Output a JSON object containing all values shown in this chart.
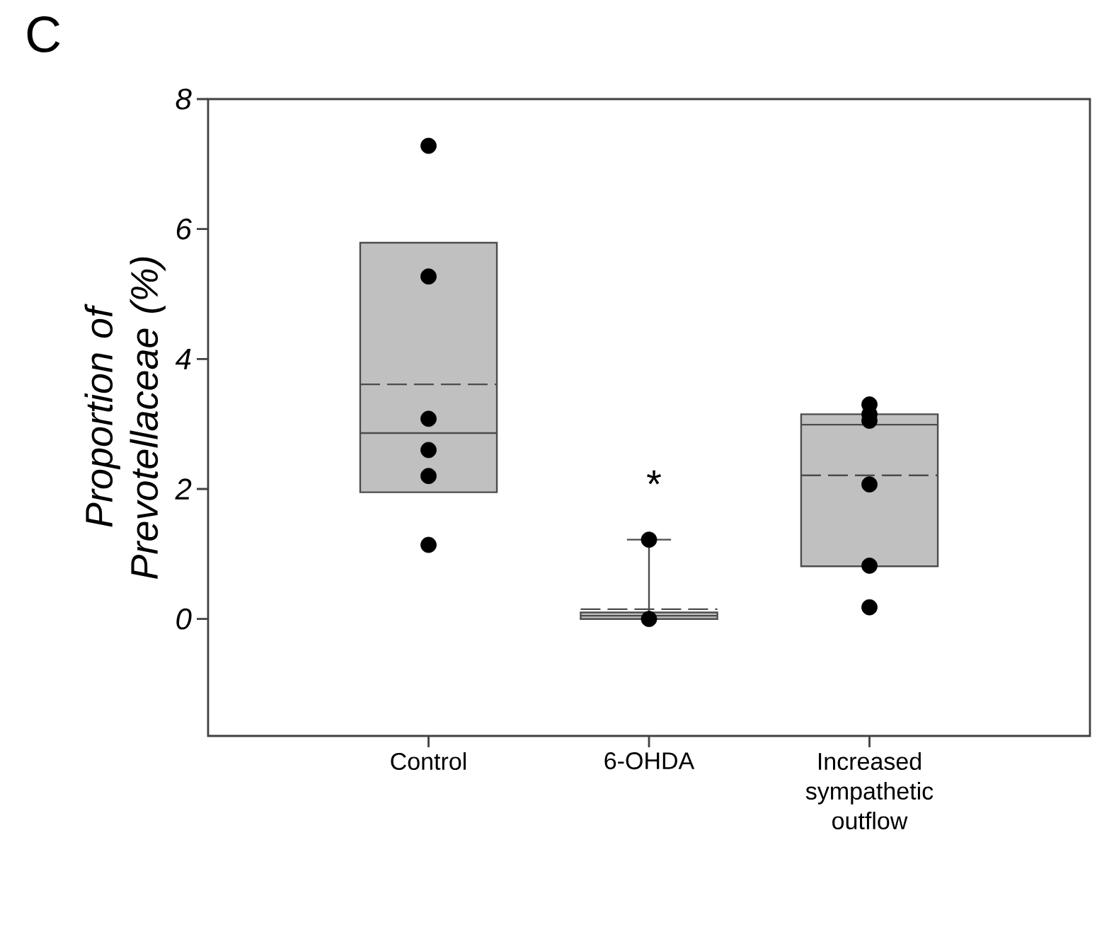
{
  "chart_data": {
    "type": "box",
    "ylabel": "Proportion of Prevotellaceae (%)",
    "categories": [
      "Control",
      "6-OHDA",
      "Increased sympathetic outflow"
    ],
    "series": [
      {
        "type": "box",
        "color": "#c0c0c0",
        "boxes": [
          {
            "low": 1.95,
            "q1": 1.95,
            "median": 2.86,
            "q3": 5.79,
            "high": 5.79,
            "mean": 3.61
          },
          {
            "low": 0,
            "q1": 0,
            "median": 0.05,
            "q3": 0.1,
            "high": 1.22,
            "mean": 0.15
          },
          {
            "low": 0.81,
            "q1": 0.81,
            "median": 2.99,
            "q3": 3.15,
            "high": 3.15,
            "mean": 2.21
          }
        ]
      },
      {
        "type": "scatter",
        "color": "#000000",
        "x": [
          "Control",
          "Control",
          "Control",
          "Control",
          "Control",
          "Control",
          "6-OHDA",
          "6-OHDA",
          "6-OHDA",
          "Increased sympathetic outflow",
          "Increased sympathetic outflow",
          "Increased sympathetic outflow",
          "Increased sympathetic outflow",
          "Increased sympathetic outflow",
          "Increased sympathetic outflow"
        ],
        "values": [
          7.28,
          5.27,
          3.08,
          2.6,
          2.2,
          1.14,
          1.22,
          null,
          0.0,
          3.3,
          3.15,
          3.05,
          2.07,
          0.82,
          0.18
        ]
      }
    ],
    "ylim": [
      -1.8,
      8
    ],
    "yticks": [
      0,
      2,
      4,
      6,
      8
    ],
    "grid": false,
    "marker": "circle",
    "annotations": [
      "C",
      "*"
    ]
  }
}
